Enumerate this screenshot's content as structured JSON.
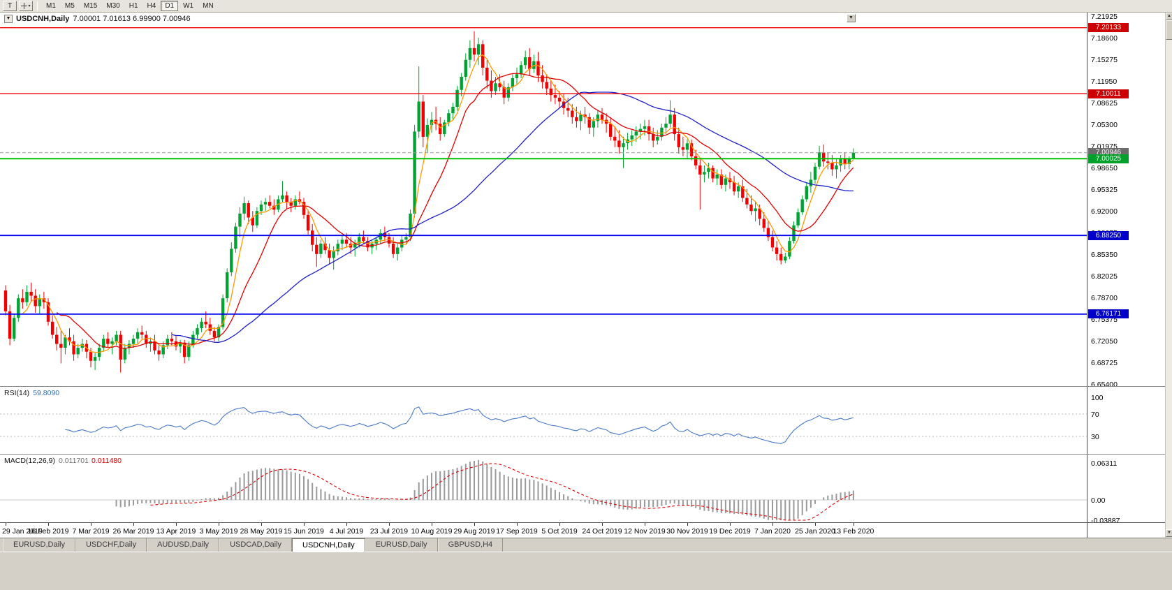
{
  "toolbar": {
    "tool_toggle": "T",
    "timeframes": [
      "M1",
      "M5",
      "M15",
      "M30",
      "H1",
      "H4",
      "D1",
      "W1",
      "MN"
    ],
    "active_timeframe": "D1"
  },
  "window": {
    "title_symbol": "USDCNH,Daily",
    "title_ohlc": "7.00001 7.01613 6.99900 7.00946",
    "menu_glyph": "▼",
    "scroll_glyph": "▼"
  },
  "price_axis": {
    "ticks": [
      "7.21925",
      "7.18600",
      "7.15275",
      "7.11950",
      "7.08625",
      "7.05300",
      "7.01975",
      "6.98650",
      "6.95325",
      "6.92000",
      "6.88675",
      "6.85350",
      "6.82025",
      "6.78700",
      "6.75375",
      "6.72050",
      "6.68725",
      "6.65400"
    ],
    "line_labels": [
      {
        "text": "7.20133",
        "value": 7.20133,
        "bg": "#cc0000"
      },
      {
        "text": "7.10011",
        "value": 7.10011,
        "bg": "#cc0000"
      },
      {
        "text": "7.00946",
        "value": 7.00946,
        "bg": "#6b6b6b"
      },
      {
        "text": "7.00025",
        "value": 7.00025,
        "bg": "#00a02a"
      },
      {
        "text": "6.88250",
        "value": 6.8825,
        "bg": "#0000c8"
      },
      {
        "text": "6.76171",
        "value": 6.76171,
        "bg": "#0000c8"
      }
    ]
  },
  "rsi": {
    "label": "RSI(14)",
    "value": "59.8090",
    "period": 14,
    "color": "#4878c8",
    "levels": [
      {
        "text": "100",
        "level": 100,
        "dashed": false
      },
      {
        "text": "70",
        "level": 70,
        "dashed": true
      },
      {
        "text": "30",
        "level": 30,
        "dashed": true
      }
    ]
  },
  "macd": {
    "label": "MACD(12,26,9)",
    "value_main": "0.011701",
    "value_signal": "0.011480",
    "fast": 12,
    "slow": 26,
    "signal": 9,
    "hist_color": "#9a9a9a",
    "signal_color": "#dd0000",
    "axis": [
      {
        "text": "0.06311",
        "value": 0.06311
      },
      {
        "text": "0.00",
        "value": 0
      },
      {
        "text": "-0.03887",
        "value": -0.03887
      }
    ]
  },
  "tabs": [
    {
      "label": "EURUSD,Daily",
      "active": false
    },
    {
      "label": "USDCHF,Daily",
      "active": false
    },
    {
      "label": "AUDUSD,Daily",
      "active": false
    },
    {
      "label": "USDCAD,Daily",
      "active": false
    },
    {
      "label": "USDCNH,Daily",
      "active": true
    },
    {
      "label": "EURUSD,Daily",
      "active": false
    },
    {
      "label": "GBPUSD,H4",
      "active": false
    }
  ],
  "chart_data": {
    "type": "candlestick",
    "symbol": "USDCNH",
    "timeframe": "Daily",
    "ohlc_display": {
      "open": "7.00001",
      "high": "7.01613",
      "low": "6.99900",
      "close": "7.00946"
    },
    "ylim": [
      6.6512,
      7.2246
    ],
    "colors": {
      "up": "#00a231",
      "down": "#f20000"
    },
    "moving_averages": [
      {
        "name": "ma-fast",
        "period": 5,
        "color": "#ff9900"
      },
      {
        "name": "ma-mid",
        "period": 13,
        "color": "#e00000"
      },
      {
        "name": "ma-slow",
        "period": 40,
        "color": "#2020c8"
      }
    ],
    "horizontal_lines": [
      {
        "value": 7.20133,
        "color": "#f20000",
        "width": 1.4
      },
      {
        "value": 7.10011,
        "color": "#f20000",
        "width": 1.4
      },
      {
        "value": 7.00025,
        "color": "#00c000",
        "width": 2
      },
      {
        "value": 6.8825,
        "color": "#0000f0",
        "width": 1.8
      },
      {
        "value": 6.76171,
        "color": "#0000f0",
        "width": 1.8
      }
    ],
    "current_price_line": {
      "value": 7.00946,
      "color": "#999999",
      "style": "dashed"
    },
    "x_labels": [
      "29 Jan 2019",
      "16 Feb 2019",
      "7 Mar 2019",
      "26 Mar 2019",
      "13 Apr 2019",
      "3 May 2019",
      "28 May 2019",
      "15 Jun 2019",
      "4 Jul 2019",
      "23 Jul 2019",
      "10 Aug 2019",
      "29 Aug 2019",
      "17 Sep 2019",
      "5 Oct 2019",
      "24 Oct 2019",
      "12 Nov 2019",
      "30 Nov 2019",
      "19 Dec 2019",
      "7 Jan 2020",
      "25 Jan 2020",
      "13 Feb 2020"
    ],
    "x_label_indices": [
      0,
      10,
      20,
      30,
      40,
      50,
      60,
      70,
      80,
      90,
      100,
      110,
      120,
      130,
      140,
      150,
      160,
      170,
      180,
      190,
      199
    ],
    "candles": [
      [
        6.798,
        6.806,
        6.76,
        6.766
      ],
      [
        6.766,
        6.776,
        6.714,
        6.724
      ],
      [
        6.724,
        6.762,
        6.72,
        6.756
      ],
      [
        6.756,
        6.792,
        6.75,
        6.786
      ],
      [
        6.786,
        6.8,
        6.77,
        6.78
      ],
      [
        6.78,
        6.806,
        6.774,
        6.796
      ],
      [
        6.796,
        6.81,
        6.78,
        6.79
      ],
      [
        6.79,
        6.8,
        6.764,
        6.774
      ],
      [
        6.774,
        6.792,
        6.762,
        6.786
      ],
      [
        6.786,
        6.796,
        6.77,
        6.78
      ],
      [
        6.78,
        6.786,
        6.744,
        6.75
      ],
      [
        6.75,
        6.76,
        6.724,
        6.73
      ],
      [
        6.73,
        6.742,
        6.706,
        6.716
      ],
      [
        6.716,
        6.736,
        6.686,
        6.71
      ],
      [
        6.71,
        6.73,
        6.7,
        6.726
      ],
      [
        6.726,
        6.74,
        6.714,
        6.72
      ],
      [
        6.72,
        6.73,
        6.69,
        6.7
      ],
      [
        6.7,
        6.716,
        6.694,
        6.71
      ],
      [
        6.71,
        6.724,
        6.704,
        6.716
      ],
      [
        6.716,
        6.722,
        6.694,
        6.704
      ],
      [
        6.704,
        6.71,
        6.68,
        6.69
      ],
      [
        6.69,
        6.702,
        6.676,
        6.696
      ],
      [
        6.696,
        6.716,
        6.69,
        6.71
      ],
      [
        6.71,
        6.73,
        6.704,
        6.724
      ],
      [
        6.724,
        6.734,
        6.71,
        6.716
      ],
      [
        6.716,
        6.726,
        6.7,
        6.72
      ],
      [
        6.72,
        6.736,
        6.714,
        6.73
      ],
      [
        6.73,
        6.736,
        6.672,
        6.692
      ],
      [
        6.692,
        6.716,
        6.686,
        6.71
      ],
      [
        6.71,
        6.722,
        6.7,
        6.716
      ],
      [
        6.716,
        6.73,
        6.71,
        6.724
      ],
      [
        6.724,
        6.74,
        6.716,
        6.734
      ],
      [
        6.734,
        6.744,
        6.724,
        6.73
      ],
      [
        6.73,
        6.736,
        6.71,
        6.716
      ],
      [
        6.716,
        6.726,
        6.704,
        6.72
      ],
      [
        6.72,
        6.73,
        6.7,
        6.706
      ],
      [
        6.706,
        6.716,
        6.69,
        6.7
      ],
      [
        6.7,
        6.72,
        6.694,
        6.714
      ],
      [
        6.714,
        6.73,
        6.708,
        6.724
      ],
      [
        6.724,
        6.734,
        6.714,
        6.72
      ],
      [
        6.72,
        6.728,
        6.706,
        6.712
      ],
      [
        6.712,
        6.722,
        6.702,
        6.718
      ],
      [
        6.718,
        6.722,
        6.686,
        6.696
      ],
      [
        6.696,
        6.72,
        6.69,
        6.714
      ],
      [
        6.714,
        6.736,
        6.71,
        6.73
      ],
      [
        6.73,
        6.746,
        6.724,
        6.74
      ],
      [
        6.74,
        6.756,
        6.734,
        6.75
      ],
      [
        6.75,
        6.766,
        6.74,
        6.746
      ],
      [
        6.746,
        6.756,
        6.73,
        6.736
      ],
      [
        6.736,
        6.742,
        6.72,
        6.726
      ],
      [
        6.726,
        6.746,
        6.72,
        6.742
      ],
      [
        6.742,
        6.792,
        6.738,
        6.786
      ],
      [
        6.786,
        6.832,
        6.78,
        6.826
      ],
      [
        6.826,
        6.872,
        6.82,
        6.862
      ],
      [
        6.862,
        6.902,
        6.856,
        6.896
      ],
      [
        6.896,
        6.926,
        6.88,
        6.916
      ],
      [
        6.916,
        6.942,
        6.906,
        6.932
      ],
      [
        6.932,
        6.936,
        6.9,
        6.91
      ],
      [
        6.91,
        6.92,
        6.888,
        6.898
      ],
      [
        6.898,
        6.926,
        6.894,
        6.92
      ],
      [
        6.92,
        6.936,
        6.914,
        6.93
      ],
      [
        6.93,
        6.94,
        6.92,
        6.934
      ],
      [
        6.934,
        6.944,
        6.924,
        6.928
      ],
      [
        6.928,
        6.938,
        6.914,
        6.922
      ],
      [
        6.922,
        6.944,
        6.918,
        6.938
      ],
      [
        6.938,
        6.966,
        6.934,
        6.944
      ],
      [
        6.944,
        6.95,
        6.924,
        6.934
      ],
      [
        6.934,
        6.94,
        6.918,
        6.928
      ],
      [
        6.928,
        6.944,
        6.922,
        6.938
      ],
      [
        6.938,
        6.95,
        6.93,
        6.934
      ],
      [
        6.934,
        6.94,
        6.908,
        6.914
      ],
      [
        6.914,
        6.92,
        6.884,
        6.89
      ],
      [
        6.89,
        6.9,
        6.858,
        6.868
      ],
      [
        6.868,
        6.88,
        6.834,
        6.854
      ],
      [
        6.854,
        6.876,
        6.848,
        6.87
      ],
      [
        6.87,
        6.88,
        6.854,
        6.86
      ],
      [
        6.86,
        6.87,
        6.838,
        6.848
      ],
      [
        6.848,
        6.866,
        6.83,
        6.858
      ],
      [
        6.858,
        6.876,
        6.852,
        6.87
      ],
      [
        6.87,
        6.882,
        6.86,
        6.876
      ],
      [
        6.876,
        6.886,
        6.864,
        6.87
      ],
      [
        6.87,
        6.88,
        6.854,
        6.864
      ],
      [
        6.864,
        6.876,
        6.85,
        6.87
      ],
      [
        6.87,
        6.886,
        6.864,
        6.88
      ],
      [
        6.88,
        6.89,
        6.87,
        6.874
      ],
      [
        6.874,
        6.88,
        6.858,
        6.864
      ],
      [
        6.864,
        6.876,
        6.854,
        6.87
      ],
      [
        6.87,
        6.88,
        6.86,
        6.876
      ],
      [
        6.876,
        6.892,
        6.87,
        6.886
      ],
      [
        6.886,
        6.896,
        6.874,
        6.88
      ],
      [
        6.88,
        6.886,
        6.864,
        6.87
      ],
      [
        6.87,
        6.88,
        6.848,
        6.854
      ],
      [
        6.854,
        6.87,
        6.844,
        6.864
      ],
      [
        6.864,
        6.882,
        6.858,
        6.876
      ],
      [
        6.876,
        6.886,
        6.868,
        6.88
      ],
      [
        6.88,
        6.922,
        6.874,
        6.916
      ],
      [
        6.916,
        7.052,
        6.91,
        7.042
      ],
      [
        7.042,
        7.142,
        7.032,
        7.088
      ],
      [
        7.088,
        7.098,
        7.018,
        7.034
      ],
      [
        7.034,
        7.062,
        7.01,
        7.052
      ],
      [
        7.052,
        7.072,
        7.04,
        7.06
      ],
      [
        7.06,
        7.08,
        7.044,
        7.054
      ],
      [
        7.054,
        7.064,
        7.028,
        7.038
      ],
      [
        7.038,
        7.06,
        7.034,
        7.056
      ],
      [
        7.056,
        7.076,
        7.05,
        7.07
      ],
      [
        7.07,
        7.086,
        7.06,
        7.08
      ],
      [
        7.08,
        7.112,
        7.074,
        7.106
      ],
      [
        7.106,
        7.132,
        7.096,
        7.126
      ],
      [
        7.126,
        7.162,
        7.12,
        7.152
      ],
      [
        7.152,
        7.182,
        7.14,
        7.17
      ],
      [
        7.17,
        7.196,
        7.15,
        7.16
      ],
      [
        7.16,
        7.186,
        7.144,
        7.176
      ],
      [
        7.176,
        7.182,
        7.128,
        7.14
      ],
      [
        7.14,
        7.152,
        7.108,
        7.12
      ],
      [
        7.12,
        7.136,
        7.094,
        7.104
      ],
      [
        7.104,
        7.126,
        7.098,
        7.116
      ],
      [
        7.116,
        7.13,
        7.104,
        7.11
      ],
      [
        7.11,
        7.12,
        7.084,
        7.094
      ],
      [
        7.094,
        7.116,
        7.088,
        7.11
      ],
      [
        7.11,
        7.13,
        7.104,
        7.124
      ],
      [
        7.124,
        7.14,
        7.114,
        7.13
      ],
      [
        7.13,
        7.15,
        7.124,
        7.144
      ],
      [
        7.144,
        7.166,
        7.138,
        7.156
      ],
      [
        7.156,
        7.17,
        7.128,
        7.138
      ],
      [
        7.138,
        7.16,
        7.132,
        7.15
      ],
      [
        7.15,
        7.164,
        7.118,
        7.128
      ],
      [
        7.128,
        7.144,
        7.108,
        7.118
      ],
      [
        7.118,
        7.13,
        7.098,
        7.108
      ],
      [
        7.108,
        7.12,
        7.088,
        7.098
      ],
      [
        7.098,
        7.114,
        7.084,
        7.094
      ],
      [
        7.094,
        7.104,
        7.078,
        7.088
      ],
      [
        7.088,
        7.1,
        7.068,
        7.078
      ],
      [
        7.078,
        7.094,
        7.064,
        7.074
      ],
      [
        7.074,
        7.084,
        7.054,
        7.064
      ],
      [
        7.064,
        7.08,
        7.048,
        7.058
      ],
      [
        7.058,
        7.074,
        7.044,
        7.068
      ],
      [
        7.068,
        7.08,
        7.054,
        7.064
      ],
      [
        7.064,
        7.07,
        7.038,
        7.048
      ],
      [
        7.048,
        7.064,
        7.034,
        7.058
      ],
      [
        7.058,
        7.074,
        7.048,
        7.068
      ],
      [
        7.068,
        7.078,
        7.054,
        7.06
      ],
      [
        7.06,
        7.07,
        7.04,
        7.054
      ],
      [
        7.054,
        7.064,
        7.028,
        7.034
      ],
      [
        7.034,
        7.05,
        7.018,
        7.028
      ],
      [
        7.028,
        7.044,
        7.008,
        7.018
      ],
      [
        7.018,
        7.034,
        6.986,
        7.024
      ],
      [
        7.024,
        7.04,
        7.014,
        7.03
      ],
      [
        7.03,
        7.044,
        7.02,
        7.036
      ],
      [
        7.036,
        7.05,
        7.026,
        7.042
      ],
      [
        7.042,
        7.054,
        7.03,
        7.046
      ],
      [
        7.046,
        7.06,
        7.036,
        7.05
      ],
      [
        7.05,
        7.06,
        7.028,
        7.038
      ],
      [
        7.038,
        7.048,
        7.018,
        7.028
      ],
      [
        7.028,
        7.044,
        7.022,
        7.034
      ],
      [
        7.034,
        7.054,
        7.028,
        7.048
      ],
      [
        7.048,
        7.064,
        7.038,
        7.054
      ],
      [
        7.054,
        7.09,
        7.048,
        7.068
      ],
      [
        7.068,
        7.078,
        7.028,
        7.038
      ],
      [
        7.038,
        7.048,
        7.008,
        7.018
      ],
      [
        7.018,
        7.034,
        7.004,
        7.014
      ],
      [
        7.014,
        7.03,
        7.0,
        7.024
      ],
      [
        7.024,
        7.03,
        6.998,
        7.004
      ],
      [
        7.004,
        7.014,
        6.984,
        6.99
      ],
      [
        6.99,
        7.0,
        6.922,
        6.976
      ],
      [
        6.976,
        6.99,
        6.964,
        6.98
      ],
      [
        6.98,
        6.994,
        6.97,
        6.986
      ],
      [
        6.986,
        6.99,
        6.964,
        6.97
      ],
      [
        6.97,
        6.984,
        6.96,
        6.976
      ],
      [
        6.976,
        6.984,
        6.954,
        6.96
      ],
      [
        6.96,
        6.976,
        6.95,
        6.97
      ],
      [
        6.97,
        6.98,
        6.954,
        6.964
      ],
      [
        6.964,
        6.974,
        6.944,
        6.95
      ],
      [
        6.95,
        6.964,
        6.94,
        6.958
      ],
      [
        6.958,
        6.968,
        6.934,
        6.94
      ],
      [
        6.94,
        6.954,
        6.924,
        6.93
      ],
      [
        6.93,
        6.944,
        6.914,
        6.92
      ],
      [
        6.92,
        6.934,
        6.904,
        6.924
      ],
      [
        6.924,
        6.93,
        6.898,
        6.908
      ],
      [
        6.908,
        6.918,
        6.888,
        6.894
      ],
      [
        6.894,
        6.904,
        6.874,
        6.88
      ],
      [
        6.88,
        6.89,
        6.858,
        6.864
      ],
      [
        6.864,
        6.874,
        6.844,
        6.854
      ],
      [
        6.854,
        6.864,
        6.838,
        6.844
      ],
      [
        6.844,
        6.856,
        6.84,
        6.85
      ],
      [
        6.85,
        6.88,
        6.846,
        6.874
      ],
      [
        6.874,
        6.904,
        6.87,
        6.898
      ],
      [
        6.898,
        6.924,
        6.894,
        6.918
      ],
      [
        6.918,
        6.944,
        6.914,
        6.938
      ],
      [
        6.938,
        6.964,
        6.934,
        6.958
      ],
      [
        6.958,
        6.98,
        6.948,
        6.968
      ],
      [
        6.968,
        6.994,
        6.962,
        6.988
      ],
      [
        6.988,
        7.02,
        6.984,
        7.01
      ],
      [
        7.01,
        7.022,
        6.988,
        6.996
      ],
      [
        6.996,
        7.01,
        6.984,
        6.994
      ],
      [
        6.994,
        7.006,
        6.974,
        6.984
      ],
      [
        6.984,
        7.0,
        6.97,
        6.99
      ],
      [
        6.99,
        7.006,
        6.98,
        7.0
      ],
      [
        7.0,
        7.01,
        6.984,
        6.992
      ],
      [
        6.992,
        7.004,
        6.984,
        7.0
      ],
      [
        7.0,
        7.0161,
        6.999,
        7.0095
      ]
    ]
  }
}
